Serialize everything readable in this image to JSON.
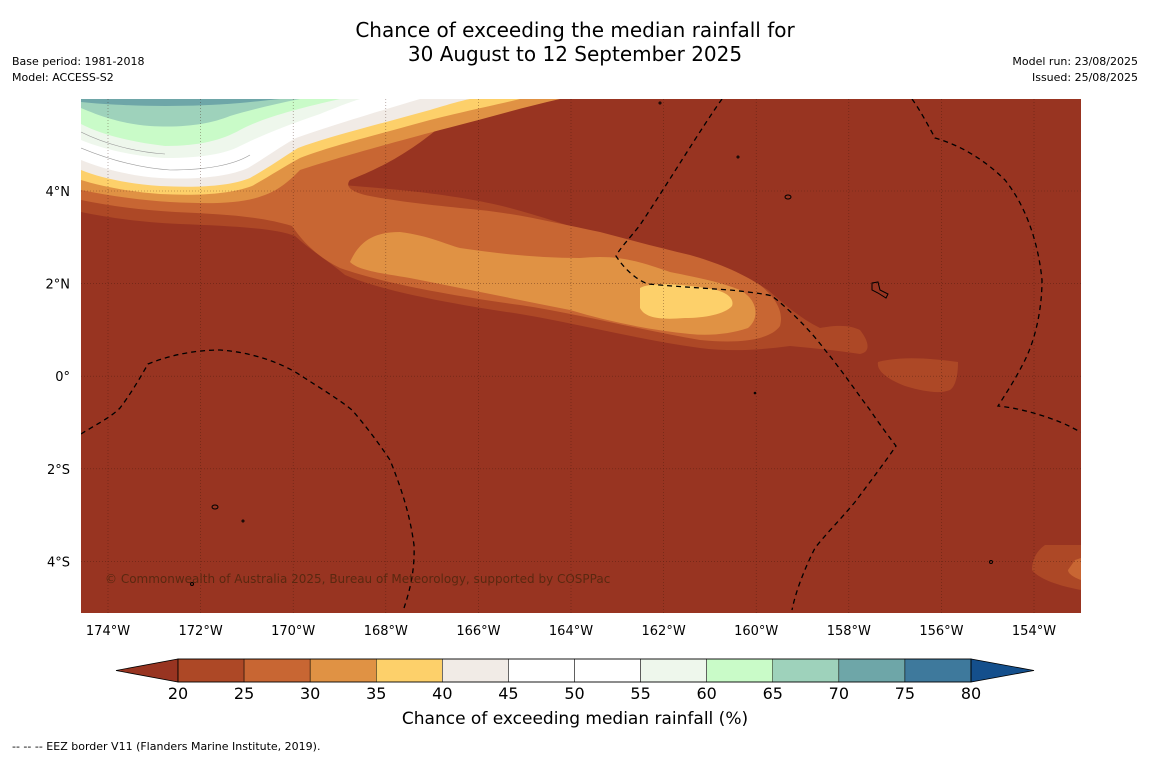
{
  "title": {
    "line1": "Chance of exceeding the median rainfall for",
    "line2": "30 August to 12 September 2025"
  },
  "meta_left": {
    "base_period": "Base period: 1981-2018",
    "model": "Model: ACCESS-S2"
  },
  "meta_right": {
    "model_run": "Model run: 23/08/2025",
    "issued": "Issued: 25/08/2025"
  },
  "map": {
    "lon_labels": [
      "174°W",
      "172°W",
      "170°W",
      "168°W",
      "166°W",
      "164°W",
      "162°W",
      "160°W",
      "158°W",
      "156°W",
      "154°W"
    ],
    "lat_labels": [
      "4°N",
      "2°N",
      "0°",
      "2°S",
      "4°S"
    ],
    "copyright": "© Commonwealth of Australia 2025, Bureau of Meteorology, supported by COSPPac",
    "colors": {
      "20": "#983421",
      "25": "#ad4826",
      "30": "#c86633",
      "35": "#e09244",
      "40": "#fdd06a",
      "45": "#f1ebe6",
      "50": "#ffffff",
      "55": "#ffffff",
      "60": "#eef7ec",
      "65": "#c9fbc8",
      "70": "#9ed2bb",
      "75": "#6ea6a8"
    }
  },
  "colorbar": {
    "ticks": [
      "20",
      "25",
      "30",
      "35",
      "40",
      "45",
      "50",
      "55",
      "60",
      "65",
      "70",
      "75",
      "80"
    ],
    "colors": [
      "#ad4826",
      "#c86633",
      "#e09244",
      "#fdd06a",
      "#f1ebe6",
      "#ffffff",
      "#ffffff",
      "#eef7ec",
      "#c9fbc8",
      "#9ed2bb",
      "#6ea6a8",
      "#3e799c"
    ],
    "under_color": "#983421",
    "over_color": "#144f8c",
    "label": "Chance of exceeding median rainfall (%)"
  },
  "footnote": "--  --  -- EEZ border V11 (Flanders Marine Institute, 2019)."
}
